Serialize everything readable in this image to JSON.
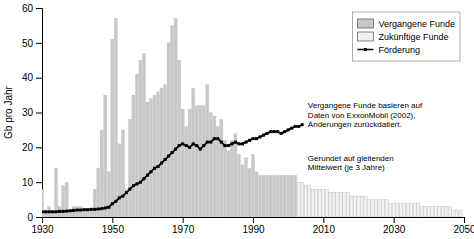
{
  "chart_data": {
    "type": "bar",
    "ylabel": "Gb pro Jahr",
    "xlim": [
      1930,
      2050
    ],
    "ylim": [
      0,
      60
    ],
    "xticks": [
      1930,
      1950,
      1970,
      1990,
      2010,
      2030,
      2050
    ],
    "yticks": [
      0,
      10,
      20,
      30,
      40,
      50,
      60
    ],
    "grid": false,
    "legend": "upper right",
    "annotations": [
      "Vergangene Funde basieren auf\nDaten von ExxonMobil (2002),\nÄnderungen zurückdatiert.",
      "Gerundet auf gleitenden\nMittelwert (je 3 Jahre)"
    ],
    "series": [
      {
        "name": "Vergangene Funde",
        "type": "bar",
        "color": "#c8c8c8",
        "x": [
          1930,
          1931,
          1932,
          1933,
          1934,
          1935,
          1936,
          1937,
          1938,
          1939,
          1940,
          1941,
          1942,
          1943,
          1944,
          1945,
          1946,
          1947,
          1948,
          1949,
          1950,
          1951,
          1952,
          1953,
          1954,
          1955,
          1956,
          1957,
          1958,
          1959,
          1960,
          1961,
          1962,
          1963,
          1964,
          1965,
          1966,
          1967,
          1968,
          1969,
          1970,
          1971,
          1972,
          1973,
          1974,
          1975,
          1976,
          1977,
          1978,
          1979,
          1980,
          1981,
          1982,
          1983,
          1984,
          1985,
          1986,
          1987,
          1988,
          1989,
          1990,
          1991,
          1992,
          1993,
          1994,
          1995,
          1996,
          1997,
          1998,
          1999,
          2000,
          2001,
          2002
        ],
        "values": [
          8,
          2,
          3,
          2,
          14,
          3,
          9,
          10,
          2,
          3,
          3,
          3,
          2,
          2,
          2,
          8,
          14,
          25,
          35,
          13,
          51,
          57,
          21,
          25,
          8,
          28,
          35,
          41,
          45,
          47,
          33,
          34,
          35,
          36,
          37,
          38,
          50,
          55,
          57,
          45,
          31,
          26,
          31,
          37,
          32,
          32,
          32,
          38,
          30,
          29,
          26,
          28,
          22,
          19,
          22,
          24,
          18,
          15,
          17,
          14,
          18,
          13,
          12,
          12,
          12,
          12,
          12,
          12,
          12,
          12,
          12,
          12,
          12
        ]
      },
      {
        "name": "Zukünftige Funde",
        "type": "bar",
        "color": "#f0f0f0",
        "x": [
          2003,
          2004,
          2005,
          2006,
          2007,
          2008,
          2009,
          2010,
          2011,
          2012,
          2013,
          2014,
          2015,
          2016,
          2017,
          2018,
          2019,
          2020,
          2021,
          2022,
          2023,
          2024,
          2025,
          2026,
          2027,
          2028,
          2029,
          2030,
          2031,
          2032,
          2033,
          2034,
          2035,
          2036,
          2037,
          2038,
          2039,
          2040,
          2041,
          2042,
          2043,
          2044,
          2045,
          2046,
          2047,
          2048,
          2049
        ],
        "values": [
          10,
          10,
          9,
          9,
          8,
          8,
          8,
          8,
          8,
          7,
          7,
          7,
          7,
          7,
          7,
          6,
          6,
          6,
          6,
          6,
          5,
          5,
          5,
          5,
          5,
          5,
          4,
          4,
          4,
          4,
          4,
          4,
          4,
          4,
          4,
          3,
          3,
          3,
          3,
          3,
          3,
          3,
          3,
          3,
          2,
          2,
          2
        ]
      },
      {
        "name": "Förderung",
        "type": "line",
        "color": "#000000",
        "marker": "square",
        "x": [
          1930,
          1931,
          1932,
          1933,
          1934,
          1935,
          1936,
          1937,
          1938,
          1939,
          1940,
          1941,
          1942,
          1943,
          1944,
          1945,
          1946,
          1947,
          1948,
          1949,
          1950,
          1951,
          1952,
          1953,
          1954,
          1955,
          1956,
          1957,
          1958,
          1959,
          1960,
          1961,
          1962,
          1963,
          1964,
          1965,
          1966,
          1967,
          1968,
          1969,
          1970,
          1971,
          1972,
          1973,
          1974,
          1975,
          1976,
          1977,
          1978,
          1979,
          1980,
          1981,
          1982,
          1983,
          1984,
          1985,
          1986,
          1987,
          1988,
          1989,
          1990,
          1991,
          1992,
          1993,
          1994,
          1995,
          1996,
          1997,
          1998,
          1999,
          2000,
          2001,
          2002,
          2003,
          2004
        ],
        "values": [
          1.5,
          1.5,
          1.5,
          1.5,
          1.5,
          1.6,
          1.6,
          1.7,
          1.8,
          1.9,
          2.0,
          2.0,
          2.1,
          2.1,
          2.2,
          2.2,
          2.3,
          2.4,
          2.6,
          2.8,
          3.8,
          4.5,
          5.5,
          6.0,
          7.0,
          8.0,
          9.0,
          9.5,
          10.0,
          11.0,
          12.0,
          13.0,
          14.0,
          14.5,
          15.5,
          16.5,
          17.5,
          18.5,
          19.5,
          20.5,
          21.0,
          20.5,
          20.0,
          21.0,
          20.5,
          19.5,
          20.5,
          21.5,
          21.5,
          22.5,
          22.5,
          21.5,
          20.5,
          20.5,
          21.0,
          21.5,
          21.0,
          21.0,
          21.5,
          22.0,
          22.5,
          22.5,
          23.0,
          23.5,
          24.0,
          24.5,
          24.5,
          24.5,
          24.0,
          24.5,
          25.0,
          25.5,
          26.0,
          26.0,
          26.5
        ]
      }
    ]
  }
}
